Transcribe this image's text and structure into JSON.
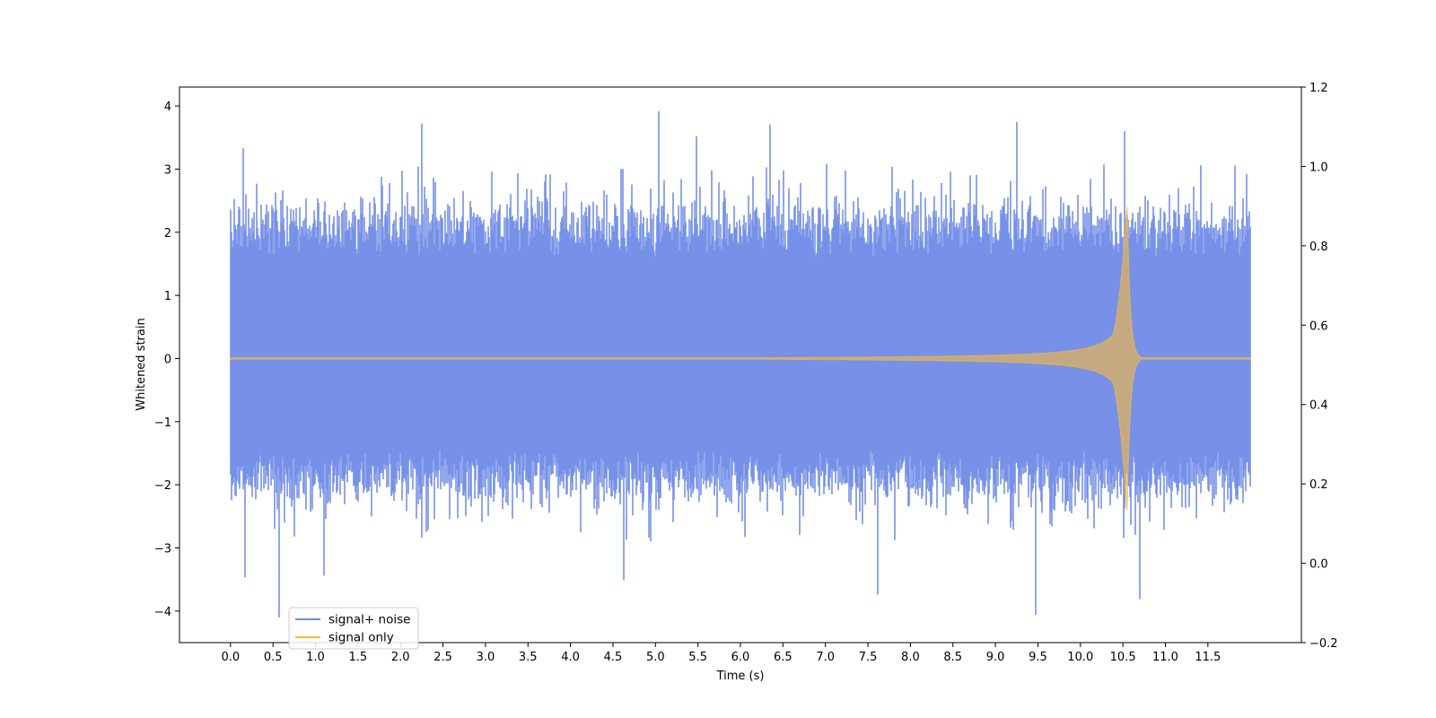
{
  "chart_data": {
    "type": "line",
    "title": "",
    "xlabel": "Time (s)",
    "ylabel": "Whitened strain",
    "xlim": [
      -0.6,
      12.6
    ],
    "ylim": [
      -4.5,
      4.3
    ],
    "y2lim": [
      -0.2,
      1.2
    ],
    "x_ticks": [
      "0.0",
      "0.5",
      "1.0",
      "1.5",
      "2.0",
      "2.5",
      "3.0",
      "3.5",
      "4.0",
      "4.5",
      "5.0",
      "5.5",
      "6.0",
      "6.5",
      "7.0",
      "7.5",
      "8.0",
      "8.5",
      "9.0",
      "9.5",
      "10.0",
      "10.5",
      "11.0",
      "11.5"
    ],
    "y_ticks": [
      "4",
      "3",
      "2",
      "1",
      "0",
      "−1",
      "−2",
      "−3",
      "−4"
    ],
    "y2_ticks": [
      "1.2",
      "1.0",
      "0.8",
      "0.6",
      "0.4",
      "0.2",
      "0.0",
      "−0.2"
    ],
    "grid": false,
    "legend_position": "lower-left",
    "colors": {
      "signal_noise": "#6f8be6",
      "signal_only": "#f5b942"
    },
    "series": [
      {
        "name": "signal+ noise",
        "style": "dense whitened noise plus signal, t = 0 to 12 s",
        "t_range": [
          0.0,
          12.0
        ],
        "typical_envelope": [
          -2.0,
          2.2
        ],
        "peaks": [
          {
            "x": 0.15,
            "y": 3.33
          },
          {
            "x": 1.87,
            "y": 2.78
          },
          {
            "x": 2.25,
            "y": 3.72
          },
          {
            "x": 5.04,
            "y": 3.92
          },
          {
            "x": 5.48,
            "y": 3.52
          },
          {
            "x": 6.35,
            "y": 3.71
          },
          {
            "x": 9.25,
            "y": 3.75
          },
          {
            "x": 10.52,
            "y": 3.6
          },
          {
            "x": 11.82,
            "y": 3.06
          }
        ],
        "troughs": [
          {
            "x": 0.17,
            "y": -3.47
          },
          {
            "x": 0.57,
            "y": -4.1
          },
          {
            "x": 1.1,
            "y": -3.44
          },
          {
            "x": 4.63,
            "y": -3.51
          },
          {
            "x": 7.62,
            "y": -3.74
          },
          {
            "x": 9.47,
            "y": -4.06
          },
          {
            "x": 10.7,
            "y": -3.81
          }
        ]
      },
      {
        "name": "signal only",
        "style": "inspiral chirp waveform",
        "t_range": [
          0.0,
          12.0
        ],
        "onset_x": 6.2,
        "merger_x": 10.55,
        "peak_amplitude": 2.5,
        "ringdown_end_x": 10.72
      }
    ]
  }
}
